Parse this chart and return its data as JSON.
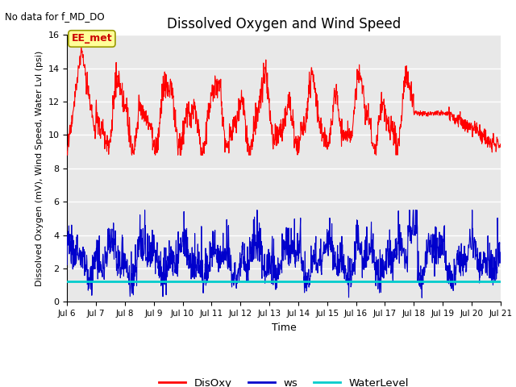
{
  "title": "Dissolved Oxygen and Wind Speed",
  "top_left_text": "No data for f_MD_DO",
  "xlabel": "Time",
  "ylabel": "Dissolved Oxygen (mV), Wind Speed, Water Lvl (psi)",
  "ylim": [
    0,
    16
  ],
  "yticks": [
    0,
    2,
    4,
    6,
    8,
    10,
    12,
    14,
    16
  ],
  "xlim": [
    6,
    21
  ],
  "water_level": 1.25,
  "disoxy_color": "#FF0000",
  "ws_color": "#0000CC",
  "wl_color": "#00CCCC",
  "legend_labels": [
    "DisOxy",
    "ws",
    "WaterLevel"
  ],
  "bg_color": "#E8E8E8",
  "grid_color": "#FFFFFF",
  "annotation_box": "EE_met",
  "annotation_color": "#CC0000",
  "annotation_bg": "#FFFF99",
  "annotation_edge": "#999900"
}
